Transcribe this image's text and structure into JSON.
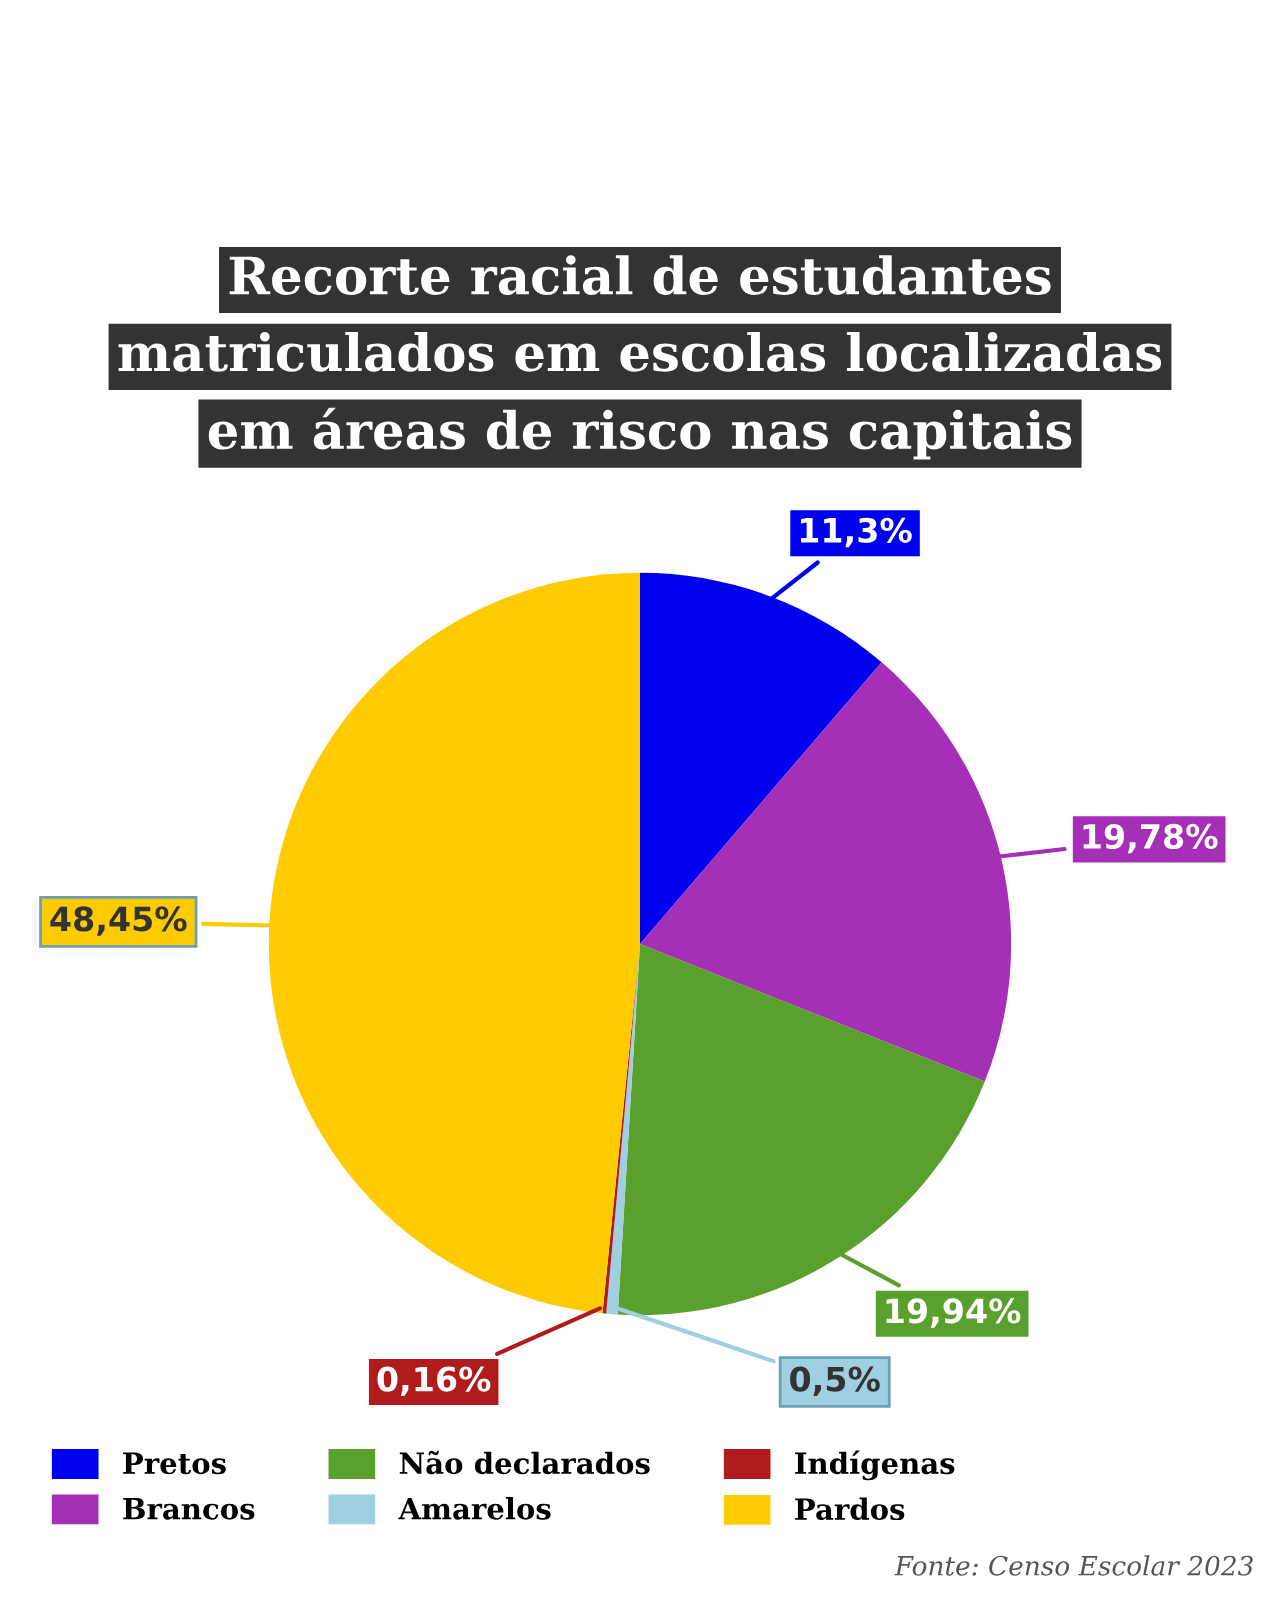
{
  "chart_data": {
    "type": "pie",
    "title": "Recorte racial de estudantes\nmatriculados em escolas localizadas\nem áreas de risco nas capitais",
    "categories": [
      "Pretos",
      "Brancos",
      "Não declarados",
      "Amarelos",
      "Indígenas",
      "Pardos"
    ],
    "values": [
      11.3,
      19.78,
      19.94,
      0.5,
      0.16,
      48.45
    ],
    "value_labels": [
      "11,3%",
      "19,78%",
      "19,94%",
      "0,5%",
      "0,16%",
      "48,45%"
    ],
    "colors": [
      "#0000f0",
      "#a62fb8",
      "#5aa02c",
      "#9fcfe0",
      "#b01c1c",
      "#fecb00"
    ],
    "legend": "bottom",
    "annotations": [
      "Fonte: Censo Escolar 2023"
    ]
  }
}
